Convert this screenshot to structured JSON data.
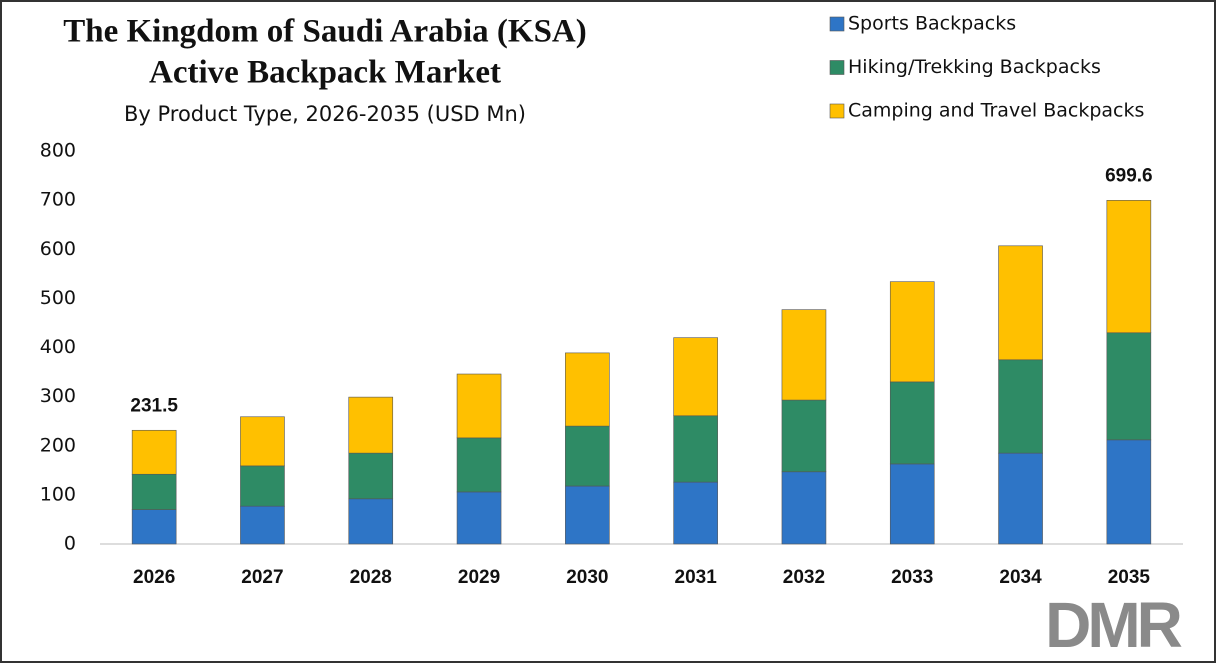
{
  "chart_data": {
    "type": "stacked-bar",
    "title": "The Kingdom of Saudi Arabia (KSA)",
    "title_line2": "Active Backpack Market",
    "subtitle": "By Product Type, 2026-2035 (USD Mn)",
    "categories": [
      "2026",
      "2027",
      "2028",
      "2029",
      "2030",
      "2031",
      "2032",
      "2033",
      "2034",
      "2035"
    ],
    "series": [
      {
        "name": "Sports Backpacks",
        "color": "#2e75c6",
        "values": [
          70,
          77,
          92,
          106,
          118,
          126,
          147,
          163,
          185,
          212
        ]
      },
      {
        "name": "Hiking/Trekking Backpacks",
        "color": "#2e8b65",
        "values": [
          72,
          82,
          93,
          110,
          122,
          135,
          146,
          167,
          190,
          218
        ]
      },
      {
        "name": "Camping and Travel Backpacks",
        "color": "#ffc000",
        "values": [
          89.5,
          100,
          114,
          130,
          149,
          159,
          184,
          204,
          232,
          269.6
        ]
      }
    ],
    "annotations": [
      {
        "category": "2026",
        "value": 231.5
      },
      {
        "category": "2035",
        "value": 699.6
      }
    ],
    "ylim": [
      0,
      800
    ],
    "yticks": [
      0,
      100,
      200,
      300,
      400,
      500,
      600,
      700,
      800
    ],
    "legend": "top-right",
    "grid": false
  },
  "logo": "DMR"
}
